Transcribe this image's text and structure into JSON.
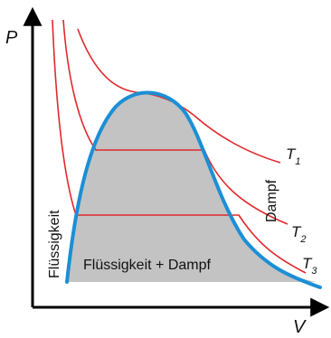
{
  "axes": {
    "y_label": "P",
    "x_label": "V"
  },
  "isotherms": [
    {
      "symbol": "T",
      "subscript": "1"
    },
    {
      "symbol": "T",
      "subscript": "2"
    },
    {
      "symbol": "T",
      "subscript": "3"
    }
  ],
  "regions": {
    "liquid": "Flüssigkeit",
    "two_phase": "Flüssigkeit + Dampf",
    "vapor": "Dampf"
  },
  "colors": {
    "axes": "#000000",
    "isotherm": "#e0282c",
    "saturation_curve": "#1b8fd6",
    "two_phase_fill": "#c3c3c3"
  }
}
